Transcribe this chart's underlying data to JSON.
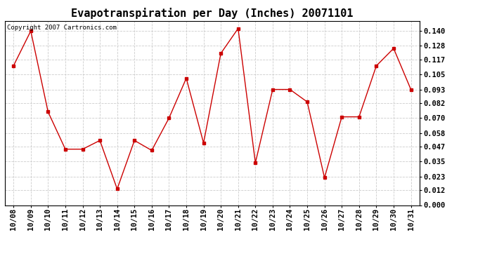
{
  "title": "Evapotranspiration per Day (Inches) 20071101",
  "copyright_text": "Copyright 2007 Cartronics.com",
  "x_labels": [
    "10/08",
    "10/09",
    "10/10",
    "10/11",
    "10/12",
    "10/13",
    "10/14",
    "10/15",
    "10/16",
    "10/17",
    "10/18",
    "10/19",
    "10/20",
    "10/21",
    "10/22",
    "10/23",
    "10/24",
    "10/25",
    "10/26",
    "10/27",
    "10/28",
    "10/29",
    "10/30",
    "10/31"
  ],
  "y_values": [
    0.112,
    0.14,
    0.075,
    0.045,
    0.045,
    0.052,
    0.013,
    0.052,
    0.044,
    0.07,
    0.102,
    0.05,
    0.122,
    0.142,
    0.034,
    0.093,
    0.093,
    0.083,
    0.022,
    0.071,
    0.071,
    0.112,
    0.126,
    0.093
  ],
  "line_color": "#cc0000",
  "marker": "s",
  "marker_size": 3,
  "bg_color": "#ffffff",
  "grid_color": "#cccccc",
  "ylim": [
    0.0,
    0.148
  ],
  "yticks": [
    0.0,
    0.012,
    0.023,
    0.035,
    0.047,
    0.058,
    0.07,
    0.082,
    0.093,
    0.105,
    0.117,
    0.128,
    0.14
  ],
  "title_fontsize": 11,
  "label_fontsize": 7.5,
  "copyright_fontsize": 6.5
}
